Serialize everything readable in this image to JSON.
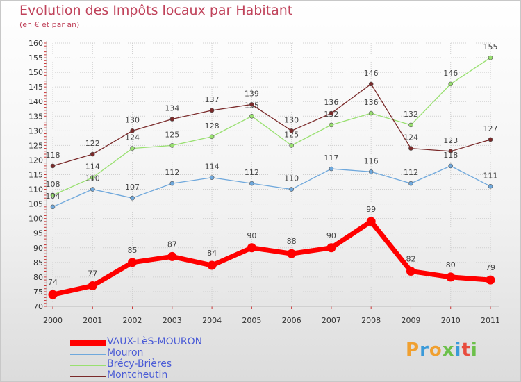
{
  "title": "Evolution des Impôts locaux par Habitant",
  "subtitle": "(en € et par an)",
  "logo_text": "Proxiti",
  "logo_colors": [
    "#f0a030",
    "#3a9ad9",
    "#f0a030",
    "#6cc04a",
    "#3a9ad9",
    "#e84c3d",
    "#6cc04a"
  ],
  "chart_data": {
    "type": "line",
    "title": "Evolution des Impôts locaux par Habitant",
    "subtitle": "(en € et par an)",
    "xlabel": "",
    "ylabel": "",
    "x": [
      "2000",
      "2001",
      "2002",
      "2003",
      "2004",
      "2005",
      "2006",
      "2007",
      "2008",
      "2009",
      "2010",
      "2011"
    ],
    "ylim": [
      70,
      160
    ],
    "yticks": [
      70,
      75,
      80,
      85,
      90,
      95,
      100,
      105,
      110,
      115,
      120,
      125,
      130,
      135,
      140,
      145,
      150,
      155,
      160
    ],
    "grid": true,
    "legend_position": "bottom-left",
    "series": [
      {
        "name": "VAUX-LèS-MOURON",
        "color": "#ff0000",
        "values": [
          74,
          77,
          85,
          87,
          84,
          90,
          88,
          90,
          99,
          82,
          80,
          79
        ]
      },
      {
        "name": "Mouron",
        "color": "#6fa8dc",
        "values": [
          104,
          110,
          107,
          112,
          114,
          112,
          110,
          117,
          116,
          112,
          118,
          111
        ]
      },
      {
        "name": "Brécy-Brières",
        "color": "#99e070",
        "values": [
          108,
          114,
          124,
          125,
          128,
          135,
          125,
          132,
          136,
          132,
          146,
          155
        ]
      },
      {
        "name": "Montcheutin",
        "color": "#7a2a2a",
        "values": [
          118,
          122,
          130,
          134,
          137,
          139,
          130,
          136,
          146,
          124,
          123,
          127
        ]
      }
    ]
  }
}
